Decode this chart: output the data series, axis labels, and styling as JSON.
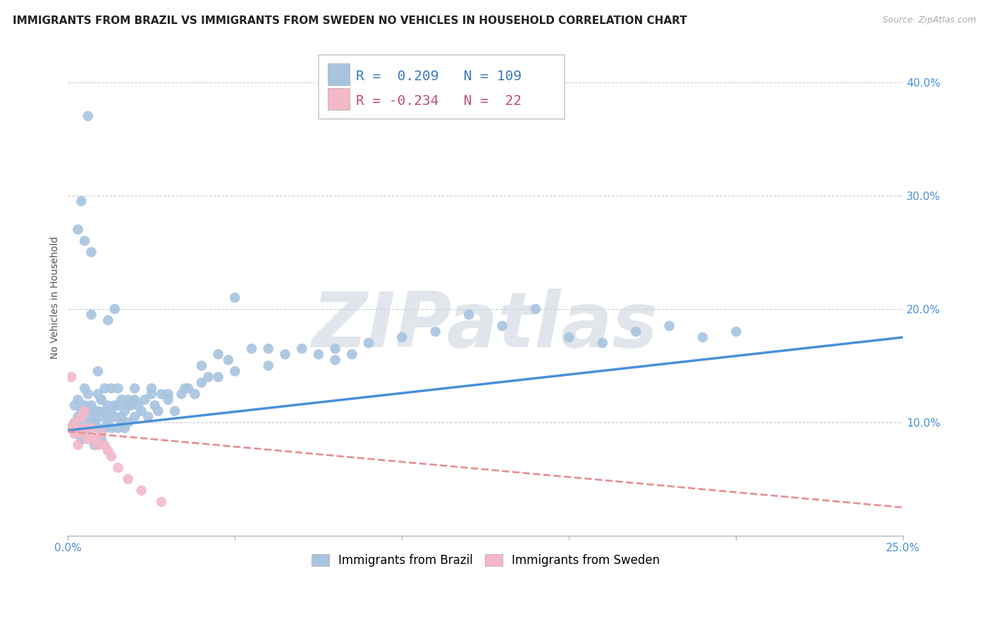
{
  "title": "IMMIGRANTS FROM BRAZIL VS IMMIGRANTS FROM SWEDEN NO VEHICLES IN HOUSEHOLD CORRELATION CHART",
  "source": "Source: ZipAtlas.com",
  "ylabel": "No Vehicles in Household",
  "xlim": [
    0.0,
    0.25
  ],
  "ylim": [
    0.0,
    0.42
  ],
  "xticks": [
    0.0,
    0.05,
    0.1,
    0.15,
    0.2,
    0.25
  ],
  "xtick_labels": [
    "0.0%",
    "",
    "",
    "",
    "",
    "25.0%"
  ],
  "yticks": [
    0.0,
    0.1,
    0.2,
    0.3,
    0.4
  ],
  "ytick_labels": [
    "",
    "10.0%",
    "20.0%",
    "30.0%",
    "40.0%"
  ],
  "brazil_R": 0.209,
  "brazil_N": 109,
  "sweden_R": -0.234,
  "sweden_N": 22,
  "brazil_color": "#a8c4e0",
  "sweden_color": "#f4b8c8",
  "brazil_line_color": "#4a90d9",
  "sweden_line_color": "#e8909a",
  "background_color": "#ffffff",
  "grid_color": "#cccccc",
  "watermark_text": "ZIPatlas",
  "watermark_color": "#cdd5e0",
  "brazil_scatter_x": [
    0.001,
    0.002,
    0.002,
    0.003,
    0.003,
    0.003,
    0.004,
    0.004,
    0.004,
    0.005,
    0.005,
    0.005,
    0.005,
    0.006,
    0.006,
    0.006,
    0.007,
    0.007,
    0.007,
    0.008,
    0.008,
    0.008,
    0.009,
    0.009,
    0.009,
    0.01,
    0.01,
    0.01,
    0.011,
    0.011,
    0.011,
    0.012,
    0.012,
    0.012,
    0.013,
    0.013,
    0.013,
    0.014,
    0.014,
    0.015,
    0.015,
    0.015,
    0.016,
    0.016,
    0.017,
    0.017,
    0.018,
    0.018,
    0.019,
    0.02,
    0.02,
    0.021,
    0.022,
    0.023,
    0.024,
    0.025,
    0.026,
    0.027,
    0.028,
    0.03,
    0.032,
    0.034,
    0.036,
    0.038,
    0.04,
    0.042,
    0.045,
    0.048,
    0.05,
    0.055,
    0.06,
    0.065,
    0.07,
    0.075,
    0.08,
    0.085,
    0.09,
    0.1,
    0.11,
    0.12,
    0.13,
    0.14,
    0.15,
    0.16,
    0.17,
    0.18,
    0.19,
    0.2,
    0.003,
    0.004,
    0.005,
    0.006,
    0.007,
    0.008,
    0.009,
    0.01,
    0.012,
    0.014,
    0.016,
    0.018,
    0.02,
    0.025,
    0.03,
    0.035,
    0.04,
    0.045,
    0.05,
    0.06,
    0.08
  ],
  "brazil_scatter_y": [
    0.095,
    0.1,
    0.115,
    0.09,
    0.105,
    0.12,
    0.095,
    0.11,
    0.085,
    0.1,
    0.115,
    0.09,
    0.13,
    0.095,
    0.11,
    0.125,
    0.105,
    0.115,
    0.195,
    0.1,
    0.11,
    0.08,
    0.125,
    0.095,
    0.145,
    0.105,
    0.12,
    0.085,
    0.11,
    0.095,
    0.13,
    0.1,
    0.115,
    0.19,
    0.11,
    0.13,
    0.095,
    0.105,
    0.2,
    0.115,
    0.095,
    0.13,
    0.12,
    0.1,
    0.11,
    0.095,
    0.12,
    0.1,
    0.115,
    0.13,
    0.105,
    0.115,
    0.11,
    0.12,
    0.105,
    0.13,
    0.115,
    0.11,
    0.125,
    0.12,
    0.11,
    0.125,
    0.13,
    0.125,
    0.15,
    0.14,
    0.16,
    0.155,
    0.21,
    0.165,
    0.165,
    0.16,
    0.165,
    0.16,
    0.165,
    0.16,
    0.17,
    0.175,
    0.18,
    0.195,
    0.185,
    0.2,
    0.175,
    0.17,
    0.18,
    0.185,
    0.175,
    0.18,
    0.27,
    0.295,
    0.26,
    0.37,
    0.25,
    0.1,
    0.11,
    0.12,
    0.105,
    0.115,
    0.105,
    0.115,
    0.12,
    0.125,
    0.125,
    0.13,
    0.135,
    0.14,
    0.145,
    0.15,
    0.155
  ],
  "sweden_scatter_x": [
    0.001,
    0.001,
    0.002,
    0.002,
    0.003,
    0.003,
    0.004,
    0.004,
    0.005,
    0.005,
    0.006,
    0.007,
    0.008,
    0.009,
    0.01,
    0.011,
    0.012,
    0.013,
    0.015,
    0.018,
    0.022,
    0.028
  ],
  "sweden_scatter_y": [
    0.095,
    0.14,
    0.09,
    0.1,
    0.095,
    0.08,
    0.105,
    0.09,
    0.095,
    0.11,
    0.085,
    0.095,
    0.085,
    0.08,
    0.09,
    0.08,
    0.075,
    0.07,
    0.06,
    0.05,
    0.04,
    0.03
  ],
  "brazil_line_x0": 0.0,
  "brazil_line_y0": 0.093,
  "brazil_line_x1": 0.25,
  "brazil_line_y1": 0.175,
  "sweden_line_x0": 0.0,
  "sweden_line_y0": 0.092,
  "sweden_line_x1": 0.25,
  "sweden_line_y1": 0.025,
  "legend_brazil_label": "Immigrants from Brazil",
  "legend_sweden_label": "Immigrants from Sweden",
  "title_fontsize": 11,
  "axis_label_fontsize": 10,
  "tick_fontsize": 11,
  "legend_fontsize": 13
}
